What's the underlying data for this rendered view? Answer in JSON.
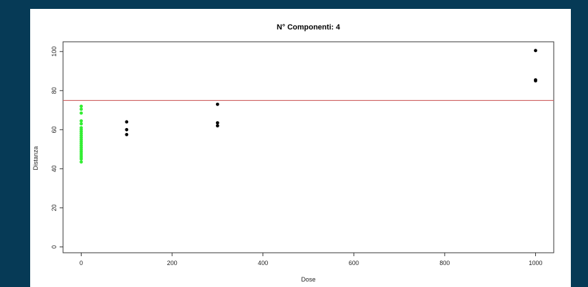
{
  "chart_data": {
    "type": "scatter",
    "title": "N° Componenti:  4",
    "xlabel": "Dose",
    "ylabel": "Distanza",
    "xlim": [
      -40,
      1040
    ],
    "ylim": [
      -3,
      105
    ],
    "x_ticks": [
      0,
      200,
      400,
      600,
      800,
      1000
    ],
    "y_ticks": [
      0,
      20,
      40,
      60,
      80,
      100
    ],
    "threshold": {
      "y": 75,
      "color": "#cd5c5c"
    },
    "series": [
      {
        "color": "#33ee33",
        "points": [
          [
            0,
            72
          ],
          [
            0,
            70.5
          ],
          [
            0,
            68.5
          ],
          [
            0,
            64.5
          ],
          [
            0,
            63
          ],
          [
            0,
            61
          ],
          [
            0,
            60
          ],
          [
            0,
            59
          ],
          [
            0,
            58
          ],
          [
            0,
            57
          ],
          [
            0,
            56
          ],
          [
            0,
            55
          ],
          [
            0,
            54
          ],
          [
            0,
            53
          ],
          [
            0,
            52
          ],
          [
            0,
            51
          ],
          [
            0,
            50
          ],
          [
            0,
            49
          ],
          [
            0,
            48
          ],
          [
            0,
            47
          ],
          [
            0,
            46
          ],
          [
            0,
            45
          ],
          [
            0,
            43.5
          ]
        ]
      },
      {
        "color": "#000000",
        "points": [
          [
            100,
            64
          ],
          [
            100,
            60
          ],
          [
            100,
            57.5
          ],
          [
            300,
            73
          ],
          [
            300,
            63.5
          ],
          [
            300,
            62
          ],
          [
            1000,
            100.5
          ],
          [
            1000,
            85.5
          ],
          [
            1000,
            85
          ]
        ]
      }
    ],
    "grid": false,
    "legend": "none"
  }
}
